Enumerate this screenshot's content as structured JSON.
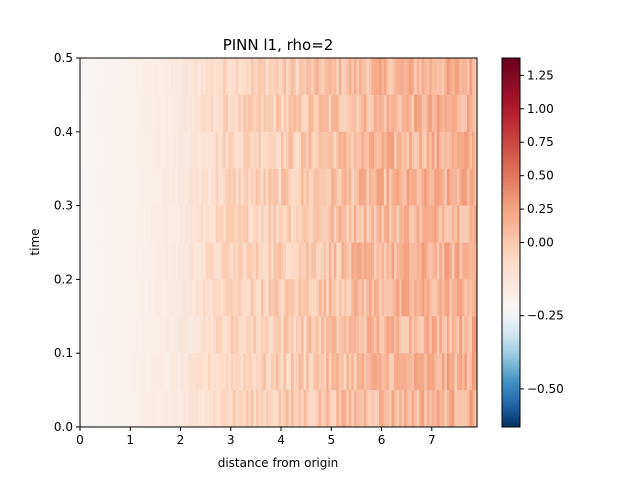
{
  "chart_data": {
    "type": "heatmap",
    "title": "PINN l1, rho=2",
    "xlabel": "distance from origin",
    "ylabel": "time",
    "xlim": [
      0,
      7.9
    ],
    "ylim": [
      0,
      0.5
    ],
    "x_ticks": [
      "0",
      "1",
      "2",
      "3",
      "4",
      "5",
      "6",
      "7"
    ],
    "y_ticks": [
      "0.0",
      "0.1",
      "0.2",
      "0.3",
      "0.4",
      "0.5"
    ],
    "grid": false,
    "colormap": "RdBu_r",
    "colorbar": {
      "vmin": -0.63,
      "vmax": 1.38,
      "vcenter": 0.0,
      "ticks": [
        1.25,
        1.0,
        0.75,
        0.5,
        0.25,
        0.0,
        -0.25,
        -0.5
      ],
      "tick_labels": [
        "1.25",
        "1.00",
        "0.75",
        "0.50",
        "0.25",
        "0.00",
        "−0.25",
        "−0.50"
      ]
    },
    "grid_shape": {
      "rows": 10,
      "cols": 158
    },
    "value_trend": {
      "x_points": [
        0,
        1,
        2,
        2.5,
        3,
        4,
        5,
        6,
        7,
        7.9
      ],
      "mean_values": [
        0.02,
        0.06,
        0.14,
        0.24,
        0.3,
        0.34,
        0.4,
        0.45,
        0.47,
        0.48
      ],
      "noise_amplitude": [
        0.0,
        0.01,
        0.03,
        0.07,
        0.09,
        0.11,
        0.12,
        0.13,
        0.13,
        0.13
      ]
    }
  }
}
